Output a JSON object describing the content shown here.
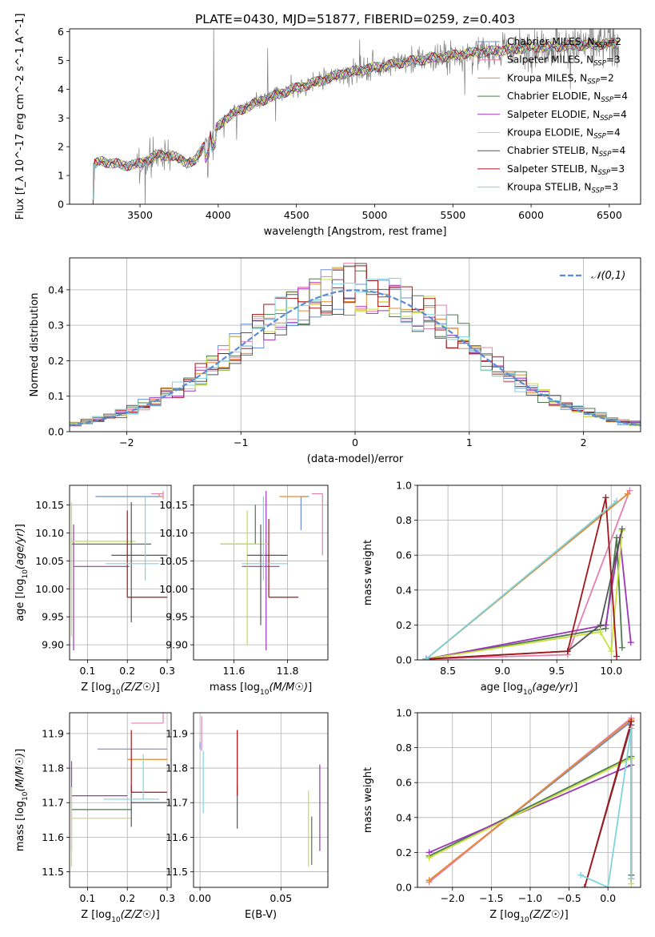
{
  "figure": {
    "title": "PLATE=0430, MJD=51877, FIBERID=0259, z=0.403"
  },
  "colors": {
    "Chabrier MILES": "#6a8fd8",
    "Salpeter MILES": "#e57fb0",
    "Kroupa MILES": "#e68a2e",
    "Chabrier ELODIE": "#4f7a4f",
    "Salpeter ELODIE": "#9b36b7",
    "Kroupa ELODIE": "#c7e03a",
    "Chabrier STELIB": "#555555",
    "Salpeter STELIB": "#a3161b",
    "Kroupa STELIB": "#7fd3dc",
    "data": "#808080"
  },
  "chart_data": [
    {
      "id": "spectrum",
      "type": "line",
      "xlabel": "wavelength [Angstrom, rest frame]",
      "ylabel": "Flux [f_λ 10^-17 erg cm^-2 s^-1 A^-1]",
      "xlim": [
        3050,
        6700
      ],
      "ylim": [
        0,
        6.1
      ],
      "xticks": [
        3500,
        4000,
        4500,
        5000,
        5500,
        6000,
        6500
      ],
      "yticks": [
        0,
        1,
        2,
        3,
        4,
        5,
        6
      ],
      "legend_position": "upper-right",
      "legend": [
        {
          "label": "Chabrier MILES, N_SSP=2",
          "pre": "Chabrier MILES, N",
          "sub": "SSP",
          "post": "=2"
        },
        {
          "label": "Salpeter MILES, N_SSP=3",
          "pre": "Salpeter MILES, N",
          "sub": "SSP",
          "post": "=3"
        },
        {
          "label": "Kroupa MILES, N_SSP=2",
          "pre": "Kroupa MILES, N",
          "sub": "SSP",
          "post": "=2"
        },
        {
          "label": "Chabrier ELODIE, N_SSP=4",
          "pre": "Chabrier ELODIE, N",
          "sub": "SSP",
          "post": "=4"
        },
        {
          "label": "Salpeter ELODIE, N_SSP=4",
          "pre": "Salpeter ELODIE, N",
          "sub": "SSP",
          "post": "=4"
        },
        {
          "label": "Kroupa ELODIE, N_SSP=4",
          "pre": "Kroupa ELODIE, N",
          "sub": "SSP",
          "post": "=4"
        },
        {
          "label": "Chabrier STELIB, N_SSP=4",
          "pre": "Chabrier STELIB, N",
          "sub": "SSP",
          "post": "=4"
        },
        {
          "label": "Salpeter STELIB, N_SSP=3",
          "pre": "Salpeter STELIB, N",
          "sub": "SSP",
          "post": "=3"
        },
        {
          "label": "Kroupa STELIB, N_SSP=3",
          "pre": "Kroupa STELIB, N",
          "sub": "SSP",
          "post": "=3"
        }
      ],
      "continuum": {
        "x": [
          3200,
          3250,
          3300,
          3400,
          3500,
          3600,
          3700,
          3800,
          3850,
          3950,
          4050,
          4150,
          4300,
          4450,
          4600,
          4800,
          5000,
          5200,
          5400,
          5600,
          5800,
          6000,
          6200,
          6400,
          6560
        ],
        "y": [
          1.35,
          1.5,
          1.45,
          1.35,
          1.4,
          1.7,
          1.7,
          1.45,
          1.5,
          2.4,
          3.0,
          3.3,
          3.65,
          3.95,
          4.2,
          4.55,
          4.75,
          4.95,
          5.1,
          5.25,
          5.35,
          5.45,
          5.5,
          5.55,
          5.6
        ]
      }
    },
    {
      "id": "residuals",
      "type": "histogram",
      "xlabel": "(data-model)/error",
      "ylabel": "Normed distribution",
      "xlim": [
        -2.5,
        2.5
      ],
      "ylim": [
        0,
        0.49
      ],
      "xticks": [
        -2,
        -1,
        0,
        1,
        2
      ],
      "yticks": [
        0.0,
        0.1,
        0.2,
        0.3,
        0.4
      ],
      "grid": true,
      "reference": {
        "name": "N(0,1)",
        "mean": 0,
        "sigma": 1,
        "color": "#5b8bd6",
        "style": "dashed"
      }
    },
    {
      "id": "age-vs-Z",
      "type": "errorbar",
      "xlabel": "Z [log10(Z/Z☉)]",
      "ylabel": "age [log10(age/yr)]",
      "xlim": [
        0.055,
        0.31
      ],
      "ylim": [
        9.873,
        10.185
      ],
      "xticks": [
        0.1,
        0.2,
        0.3
      ],
      "yticks": [
        9.9,
        9.95,
        10.0,
        10.05,
        10.1,
        10.15
      ],
      "grid": true,
      "points": [
        {
          "model": "Chabrier MILES",
          "x": 0.12,
          "xerr": [
            0,
            0.17
          ],
          "y": 10.165,
          "yerr": [
            0,
            0
          ]
        },
        {
          "model": "Salpeter MILES",
          "x": 0.29,
          "xerr": [
            0.03,
            0
          ],
          "y": 10.17,
          "yerr": [
            0.01,
            0.005
          ]
        },
        {
          "model": "Kroupa MILES",
          "x": 0.28,
          "xerr": [
            0,
            0.01
          ],
          "y": 10.165,
          "yerr": [
            0,
            0.005
          ]
        },
        {
          "model": "Chabrier ELODIE",
          "x": 0.06,
          "xerr": [
            0,
            0.2
          ],
          "y": 10.08,
          "yerr": [
            0,
            0
          ]
        },
        {
          "model": "Salpeter ELODIE",
          "x": 0.065,
          "xerr": [
            0,
            0.14
          ],
          "y": 10.04,
          "yerr": [
            0.15,
            0.075
          ]
        },
        {
          "model": "Kroupa ELODIE",
          "x": 0.06,
          "xerr": [
            0,
            0.16
          ],
          "y": 10.085,
          "yerr": [
            0.17,
            0.07
          ]
        },
        {
          "model": "Chabrier STELIB",
          "x": 0.21,
          "xerr": [
            0.05,
            0.09
          ],
          "y": 10.06,
          "yerr": [
            0.12,
            0.095
          ]
        },
        {
          "model": "Salpeter STELIB",
          "x": 0.2,
          "xerr": [
            0,
            0.1
          ],
          "y": 9.985,
          "yerr": [
            0,
            0.155
          ]
        },
        {
          "model": "Kroupa STELIB",
          "x": 0.245,
          "xerr": [
            0.1,
            0.035
          ],
          "y": 10.045,
          "yerr": [
            0.03,
            0.12
          ]
        }
      ]
    },
    {
      "id": "age-vs-mass",
      "type": "errorbar",
      "xlabel": "mass [log10(M/M☉)]",
      "ylabel": "",
      "xlim": [
        11.45,
        11.95
      ],
      "ylim": [
        9.873,
        10.185
      ],
      "xticks": [
        11.6,
        11.8
      ],
      "yticks": [
        9.9,
        9.95,
        10.0,
        10.05,
        10.1,
        10.15
      ],
      "grid": true,
      "points": [
        {
          "model": "Chabrier MILES",
          "x": 11.85,
          "xerr": [
            0,
            0.03
          ],
          "y": 10.165,
          "yerr": [
            0.06,
            0
          ]
        },
        {
          "model": "Salpeter MILES",
          "x": 11.93,
          "xerr": [
            0.04,
            0
          ],
          "y": 10.17,
          "yerr": [
            0.11,
            0
          ]
        },
        {
          "model": "Kroupa MILES",
          "x": 11.82,
          "xerr": [
            0.05,
            0.05
          ],
          "y": 10.165,
          "yerr": [
            0,
            0
          ]
        },
        {
          "model": "Chabrier ELODIE",
          "x": 11.68,
          "xerr": [
            0.13,
            0
          ],
          "y": 10.08,
          "yerr": [
            0,
            0.07
          ]
        },
        {
          "model": "Salpeter ELODIE",
          "x": 11.72,
          "xerr": [
            0.09,
            0.05
          ],
          "y": 10.04,
          "yerr": [
            0.15,
            0.135
          ]
        },
        {
          "model": "Kroupa ELODIE",
          "x": 11.65,
          "xerr": [
            0.1,
            0.08
          ],
          "y": 10.08,
          "yerr": [
            0.18,
            0.06
          ]
        },
        {
          "model": "Chabrier STELIB",
          "x": 11.7,
          "xerr": [
            0.05,
            0.1
          ],
          "y": 10.06,
          "yerr": [
            0.125,
            0.055
          ]
        },
        {
          "model": "Salpeter STELIB",
          "x": 11.73,
          "xerr": [
            0,
            0.11
          ],
          "y": 9.985,
          "yerr": [
            0,
            0.14
          ]
        },
        {
          "model": "Kroupa STELIB",
          "x": 11.71,
          "xerr": [
            0.08,
            0.09
          ],
          "y": 10.045,
          "yerr": [
            0.03,
            0.12
          ]
        }
      ]
    },
    {
      "id": "weight-vs-age",
      "type": "line",
      "xlabel": "age [log10(age/yr)]",
      "ylabel": "mass weight",
      "xlim": [
        8.22,
        10.27
      ],
      "ylim": [
        0,
        1.0
      ],
      "xticks": [
        8.5,
        9.0,
        9.5,
        10.0
      ],
      "yticks": [
        0.0,
        0.2,
        0.4,
        0.6,
        0.8,
        1.0
      ],
      "grid": true,
      "series": [
        {
          "name": "Chabrier MILES",
          "x": [
            8.3,
            10.15
          ],
          "y": [
            0.005,
            0.95
          ]
        },
        {
          "name": "Salpeter MILES",
          "x": [
            8.3,
            9.6,
            10.17
          ],
          "y": [
            0.005,
            0.03,
            0.97
          ]
        },
        {
          "name": "Kroupa MILES",
          "x": [
            8.3,
            10.15
          ],
          "y": [
            0.005,
            0.95
          ]
        },
        {
          "name": "Chabrier ELODIE",
          "x": [
            8.3,
            9.95,
            10.05,
            10.1
          ],
          "y": [
            0.005,
            0.18,
            0.7,
            0.07
          ]
        },
        {
          "name": "Salpeter ELODIE",
          "x": [
            8.3,
            9.95,
            10.08,
            10.18
          ],
          "y": [
            0.005,
            0.2,
            0.7,
            0.1
          ]
        },
        {
          "name": "Kroupa ELODIE",
          "x": [
            8.3,
            9.9,
            10.0,
            10.1
          ],
          "y": [
            0.005,
            0.16,
            0.05,
            0.74
          ]
        },
        {
          "name": "Chabrier STELIB",
          "x": [
            8.3,
            9.6,
            9.9,
            10.1
          ],
          "y": [
            0.005,
            0.05,
            0.2,
            0.75
          ]
        },
        {
          "name": "Salpeter STELIB",
          "x": [
            8.3,
            9.6,
            9.95,
            10.05
          ],
          "y": [
            0.005,
            0.05,
            0.93,
            0.02
          ]
        },
        {
          "name": "Kroupa STELIB",
          "x": [
            8.3,
            10.05
          ],
          "y": [
            0.005,
            0.91
          ]
        }
      ]
    },
    {
      "id": "mass-vs-Z",
      "type": "errorbar",
      "xlabel": "Z [log10(Z/Z☉)]",
      "ylabel": "mass [log10(M/M☉)]",
      "xlim": [
        0.055,
        0.31
      ],
      "ylim": [
        11.455,
        11.96
      ],
      "xticks": [
        0.1,
        0.2,
        0.3
      ],
      "yticks": [
        11.5,
        11.6,
        11.7,
        11.8,
        11.9
      ],
      "grid": true,
      "points": [
        {
          "model": "Chabrier MILES",
          "x": 0.125,
          "xerr": [
            0,
            0.175
          ],
          "y": 11.855,
          "yerr": [
            0,
            0
          ]
        },
        {
          "model": "Salpeter MILES",
          "x": 0.29,
          "xerr": [
            0.08,
            0
          ],
          "y": 11.93,
          "yerr": [
            0,
            0.03
          ]
        },
        {
          "model": "Kroupa MILES",
          "x": 0.2,
          "xerr": [
            0,
            0.1
          ],
          "y": 11.825,
          "yerr": [
            0,
            0
          ]
        },
        {
          "model": "Chabrier ELODIE",
          "x": 0.06,
          "xerr": [
            0,
            0.15
          ],
          "y": 11.68,
          "yerr": [
            0,
            0
          ]
        },
        {
          "model": "Salpeter ELODIE",
          "x": 0.06,
          "xerr": [
            0,
            0.14
          ],
          "y": 11.72,
          "yerr": [
            0.16,
            0.1
          ]
        },
        {
          "model": "Kroupa ELODIE",
          "x": 0.06,
          "xerr": [
            0,
            0.15
          ],
          "y": 11.655,
          "yerr": [
            0.14,
            0.09
          ]
        },
        {
          "model": "Chabrier STELIB",
          "x": 0.21,
          "xerr": [
            0,
            0.09
          ],
          "y": 11.7,
          "yerr": [
            0.07,
            0.05
          ]
        },
        {
          "model": "Salpeter STELIB",
          "x": 0.21,
          "xerr": [
            0,
            0.09
          ],
          "y": 11.73,
          "yerr": [
            0,
            0.18
          ]
        },
        {
          "model": "Kroupa STELIB",
          "x": 0.24,
          "xerr": [
            0.1,
            0.04
          ],
          "y": 11.71,
          "yerr": [
            0,
            0.13
          ]
        }
      ]
    },
    {
      "id": "mass-vs-EBV",
      "type": "errorbar",
      "xlabel": "E(B-V)",
      "ylabel": "",
      "xlim": [
        -0.004,
        0.079
      ],
      "ylim": [
        11.455,
        11.96
      ],
      "xticks": [
        0.0,
        0.05
      ],
      "yticks": [
        11.5,
        11.6,
        11.7,
        11.8,
        11.9
      ],
      "grid": true,
      "points": [
        {
          "model": "Chabrier MILES",
          "x": 0.0,
          "xerr": [
            0,
            0
          ],
          "y": 11.855,
          "yerr": [
            0,
            0.02
          ]
        },
        {
          "model": "Salpeter MILES",
          "x": 0.001,
          "xerr": [
            0,
            0
          ],
          "y": 11.9,
          "yerr": [
            0.05,
            0.05
          ]
        },
        {
          "model": "Kroupa MILES",
          "x": 0.023,
          "xerr": [
            0,
            0
          ],
          "y": 11.82,
          "yerr": [
            0.1,
            0.09
          ]
        },
        {
          "model": "Chabrier ELODIE",
          "x": 0.069,
          "xerr": [
            0,
            0
          ],
          "y": 11.6,
          "yerr": [
            0.08,
            0.06
          ]
        },
        {
          "model": "Salpeter ELODIE",
          "x": 0.074,
          "xerr": [
            0,
            0
          ],
          "y": 11.72,
          "yerr": [
            0.16,
            0.09
          ]
        },
        {
          "model": "Kroupa ELODIE",
          "x": 0.067,
          "xerr": [
            0,
            0
          ],
          "y": 11.655,
          "yerr": [
            0.14,
            0.08
          ]
        },
        {
          "model": "Chabrier STELIB",
          "x": 0.023,
          "xerr": [
            0,
            0
          ],
          "y": 11.7,
          "yerr": [
            0.075,
            0.05
          ]
        },
        {
          "model": "Salpeter STELIB",
          "x": 0.023,
          "xerr": [
            0,
            0
          ],
          "y": 11.75,
          "yerr": [
            0.03,
            0.16
          ]
        },
        {
          "model": "Kroupa STELIB",
          "x": 0.002,
          "xerr": [
            0,
            0
          ],
          "y": 11.75,
          "yerr": [
            0.08,
            0.1
          ]
        }
      ]
    },
    {
      "id": "weight-vs-Z",
      "type": "line",
      "xlabel": "Z [log10(Z/Z☉)]",
      "ylabel": "mass weight",
      "xlim": [
        -2.45,
        0.42
      ],
      "ylim": [
        0,
        1.0
      ],
      "xticks": [
        -2.0,
        -1.5,
        -1.0,
        -0.5,
        0.0
      ],
      "yticks": [
        0.0,
        0.2,
        0.4,
        0.6,
        0.8,
        1.0
      ],
      "grid": true,
      "series": [
        {
          "name": "Chabrier MILES",
          "x": [
            -2.3,
            0.3
          ],
          "y": [
            0.04,
            0.95
          ]
        },
        {
          "name": "Salpeter MILES",
          "x": [
            -2.3,
            0.3
          ],
          "y": [
            0.03,
            0.97
          ]
        },
        {
          "name": "Kroupa MILES",
          "x": [
            -2.3,
            0.3
          ],
          "y": [
            0.04,
            0.96
          ]
        },
        {
          "name": "Chabrier ELODIE",
          "x": [
            -2.3,
            0.3
          ],
          "y": [
            0.18,
            0.75
          ]
        },
        {
          "name": "Salpeter ELODIE",
          "x": [
            -2.3,
            0.3
          ],
          "y": [
            0.2,
            0.7
          ]
        },
        {
          "name": "Kroupa ELODIE",
          "x": [
            -2.3,
            0.3,
            0.3
          ],
          "y": [
            0.17,
            0.74,
            0.02
          ]
        },
        {
          "name": "Chabrier STELIB",
          "x": [
            -0.3,
            0.3,
            0.3
          ],
          "y": [
            0.0,
            0.93,
            0.07
          ]
        },
        {
          "name": "Salpeter STELIB",
          "x": [
            -0.3,
            0.3,
            0.3
          ],
          "y": [
            0.0,
            0.95,
            0.05
          ]
        },
        {
          "name": "Kroupa STELIB",
          "x": [
            -0.35,
            0.0,
            0.3,
            0.3
          ],
          "y": [
            0.07,
            0.0,
            0.91,
            0.05
          ]
        }
      ]
    }
  ]
}
